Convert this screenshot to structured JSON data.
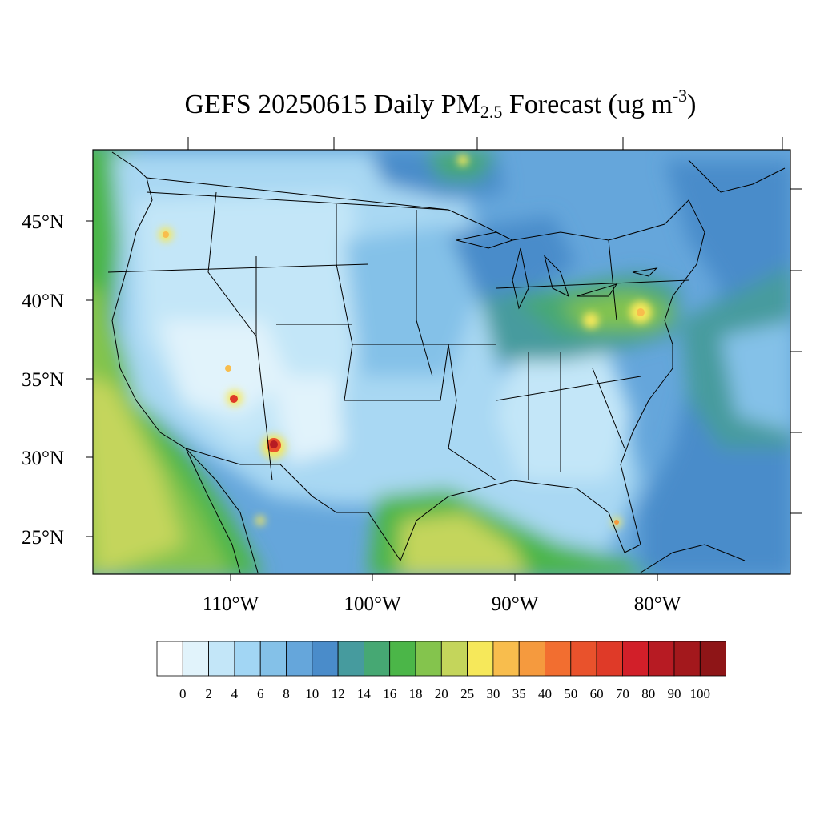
{
  "title": {
    "main": "GEFS 20250615 Daily PM",
    "sub": "2.5",
    "mid": " Forecast (ug m",
    "sup": "-3",
    "end": ")"
  },
  "axes": {
    "lat_labels": [
      "45°N",
      "40°N",
      "35°N",
      "30°N",
      "25°N"
    ],
    "lon_labels": [
      "110°W",
      "100°W",
      "90°W",
      "80°W"
    ]
  },
  "colorbar": {
    "levels": [
      "0",
      "2",
      "4",
      "6",
      "8",
      "10",
      "12",
      "14",
      "16",
      "18",
      "20",
      "25",
      "30",
      "35",
      "40",
      "50",
      "60",
      "70",
      "80",
      "90",
      "100"
    ],
    "colors": [
      "#ffffff",
      "#e1f3fb",
      "#c3e6f8",
      "#a2d6f4",
      "#84c1e8",
      "#65a6db",
      "#4a8cca",
      "#469b9e",
      "#46a873",
      "#4bb648",
      "#84c44d",
      "#c4d55b",
      "#f6e85a",
      "#f8bd4d",
      "#f59a3e",
      "#f26e30",
      "#e9522c",
      "#df3a28",
      "#d21f29",
      "#b71b23",
      "#a3181c",
      "#8e1517"
    ]
  },
  "colors": {
    "ocean_west": "#66b84f",
    "ocean_mid": "#4a8cca",
    "land_base": "#a9d8f3",
    "gulf": "#c4d55b",
    "border": "#000000"
  }
}
